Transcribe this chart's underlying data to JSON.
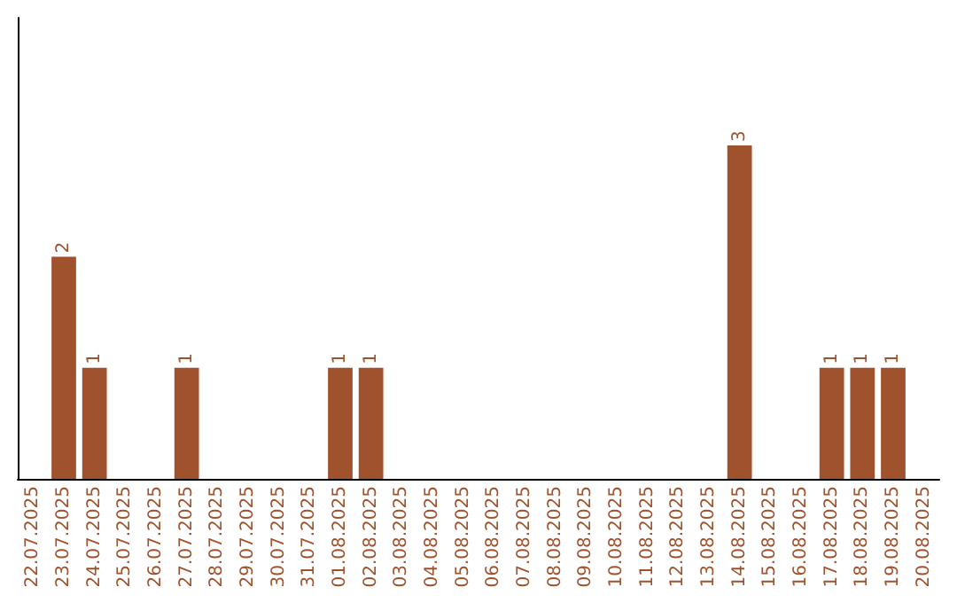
{
  "chart_data": {
    "type": "bar",
    "categories": [
      "22.07.2025",
      "23.07.2025",
      "24.07.2025",
      "25.07.2025",
      "26.07.2025",
      "27.07.2025",
      "28.07.2025",
      "29.07.2025",
      "30.07.2025",
      "31.07.2025",
      "01.08.2025",
      "02.08.2025",
      "03.08.2025",
      "04.08.2025",
      "05.08.2025",
      "06.08.2025",
      "07.08.2025",
      "08.08.2025",
      "09.08.2025",
      "10.08.2025",
      "11.08.2025",
      "12.08.2025",
      "13.08.2025",
      "14.08.2025",
      "15.08.2025",
      "16.08.2025",
      "17.08.2025",
      "18.08.2025",
      "19.08.2025",
      "20.08.2025"
    ],
    "values": [
      0,
      2,
      1,
      0,
      0,
      1,
      0,
      0,
      0,
      0,
      1,
      1,
      0,
      0,
      0,
      0,
      0,
      0,
      0,
      0,
      0,
      0,
      0,
      3,
      0,
      0,
      1,
      1,
      1,
      0
    ],
    "value_labels": [
      null,
      "2",
      "1",
      null,
      null,
      "1",
      null,
      null,
      null,
      null,
      "1",
      "1",
      null,
      null,
      null,
      null,
      null,
      null,
      null,
      null,
      null,
      null,
      null,
      "3",
      null,
      null,
      "1",
      "1",
      "1",
      null
    ],
    "color": "#a0522d",
    "ylim": [
      0,
      4.15
    ],
    "tick_labels": "x",
    "grid": false
  }
}
